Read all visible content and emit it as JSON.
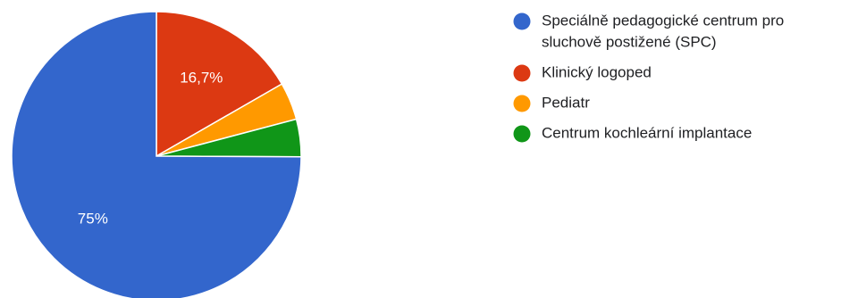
{
  "chart_data": {
    "type": "pie",
    "categories": [
      "Speciálně pedagogické centrum pro sluchově postižené (SPC)",
      "Klinický logoped",
      "Pediatr",
      "Centrum kochleární implantace"
    ],
    "values": [
      75,
      16.7,
      4.2,
      4.2
    ],
    "colors": [
      "#3366cc",
      "#dc3912",
      "#ff9900",
      "#109618"
    ],
    "data_labels": [
      "75%",
      "16,7%",
      "",
      ""
    ],
    "legend": {
      "position": "right",
      "entries": [
        [
          "Speciálně pedagogické centrum pro",
          "sluchově postižené (SPC)"
        ],
        [
          "Klinický logoped"
        ],
        [
          "Pediatr"
        ],
        [
          "Centrum kochleární implantace"
        ]
      ]
    },
    "start_angle": "12 o'clock, clockwise, first slice last"
  }
}
